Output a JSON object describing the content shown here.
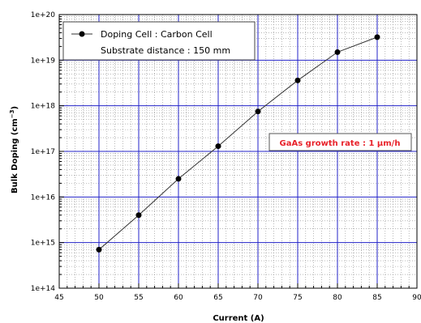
{
  "chart_data": {
    "type": "line",
    "xlabel": "Current (A)",
    "ylabel": "Bulk Doping (cm",
    "ylabel_sup": "−3",
    "ylabel_tail": ")",
    "xlim": [
      45,
      90
    ],
    "ylim_log10": [
      14,
      20
    ],
    "y_scale": "log",
    "grid": true,
    "x_ticks": [
      45,
      50,
      55,
      60,
      65,
      70,
      75,
      80,
      85,
      90
    ],
    "x_tick_labels": [
      "45",
      "50",
      "55",
      "60",
      "65",
      "70",
      "75",
      "80",
      "85",
      "90"
    ],
    "y_ticks_log10": [
      14,
      15,
      16,
      17,
      18,
      19,
      20
    ],
    "y_tick_labels": [
      "1e+14",
      "1e+15",
      "1e+16",
      "1e+17",
      "1e+18",
      "1e+19",
      "1e+20"
    ],
    "series": [
      {
        "name": "Doping Cell : Carbon Cell",
        "x": [
          50,
          55,
          60,
          65,
          70,
          75,
          80,
          85
        ],
        "y": [
          700000000000000.0,
          4000000000000000.0,
          2.5e+16,
          1.3e+17,
          7.5e+17,
          3.6e+18,
          1.5e+19,
          3.2e+19
        ]
      }
    ],
    "legend": {
      "position": "top-left",
      "line1": "Doping Cell : Carbon Cell",
      "line2": "Substrate distance : 150 mm"
    },
    "annotation": {
      "text": "GaAs growth rate : 1 μm/h",
      "color": "#e8222a"
    },
    "colors": {
      "major_grid": "#2323c8",
      "minor_grid": "#8a8a8a",
      "series": "#333333",
      "marker": "#000000"
    }
  }
}
